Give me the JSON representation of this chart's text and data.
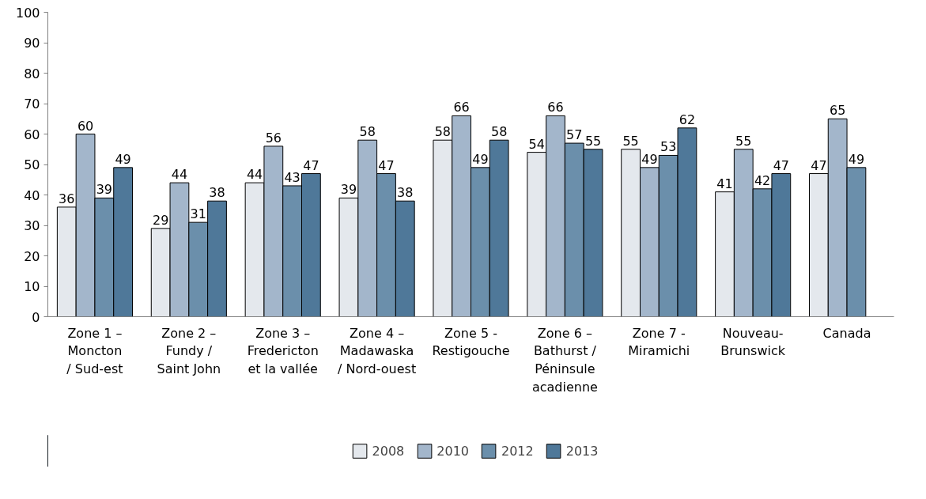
{
  "chart_data": {
    "type": "bar",
    "categories": [
      "Zone 1 –\nMoncton\n/ Sud-est",
      "Zone 2 –\nFundy /\nSaint John",
      "Zone 3 –\nFredericton\net la vallée",
      "Zone 4 –\nMadawaska\n/ Nord-ouest",
      "Zone 5 -\nRestigouche",
      "Zone 6 –\nBathurst /\nPéninsule\nacadienne",
      "Zone 7 -\nMiramichi",
      "Nouveau-\nBrunswick",
      "Canada"
    ],
    "series": [
      {
        "name": "2008",
        "color": "#e4e8ed",
        "values": [
          36,
          29,
          44,
          39,
          58,
          54,
          55,
          41,
          47
        ]
      },
      {
        "name": "2010",
        "color": "#a3b6cb",
        "values": [
          60,
          44,
          56,
          58,
          66,
          66,
          49,
          55,
          65
        ]
      },
      {
        "name": "2012",
        "color": "#6b8fab",
        "values": [
          39,
          31,
          43,
          47,
          49,
          57,
          53,
          42,
          49
        ]
      },
      {
        "name": "2013",
        "color": "#4f7899",
        "values": [
          49,
          38,
          47,
          38,
          58,
          55,
          62,
          47,
          null
        ]
      }
    ],
    "ylim": [
      0,
      100
    ],
    "yticks": [
      0,
      10,
      20,
      30,
      40,
      50,
      60,
      70,
      80,
      90,
      100
    ],
    "grid": false,
    "legend": "bottom",
    "data_labels": true
  }
}
